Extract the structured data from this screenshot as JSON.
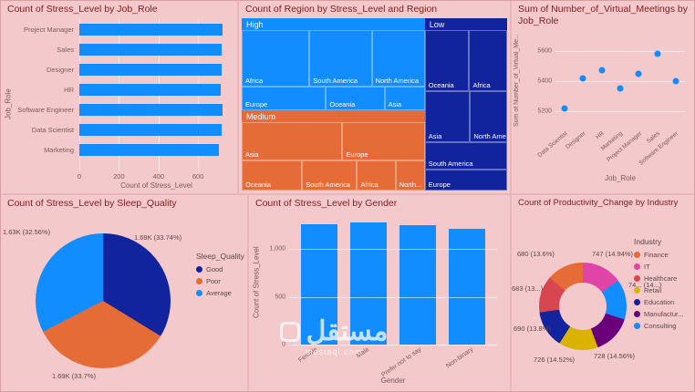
{
  "theme": {
    "background": "#E9B6B9",
    "panel_background": "#F4C9CB",
    "title_color": "#7E1D1D",
    "axis_text_color": "#7A5B5B",
    "primary_blue": "#118DFF",
    "dark_blue": "#12239E",
    "orange": "#E66C37",
    "pink": "#E044A7",
    "purple": "#6B007B",
    "yellow": "#D9B300",
    "red": "#D64550"
  },
  "watermark": {
    "brand": "مستقل",
    "domain": "mostaql.com"
  },
  "chart_data": [
    {
      "id": "job_role_bar",
      "type": "bar",
      "orientation": "horizontal",
      "title": "Count of Stress_Level by Job_Role",
      "xlabel": "Count of Stress_Level",
      "ylabel": "Job_Role",
      "categories": [
        "Project Manager",
        "Sales",
        "Designer",
        "HR",
        "Software Engineer",
        "Data Scientist",
        "Marketing"
      ],
      "values": [
        724,
        721,
        718,
        714,
        722,
        719,
        705
      ],
      "x_ticks": [
        0,
        200,
        400,
        600
      ],
      "x_max": 770,
      "bar_color": "#118DFF",
      "grid": true
    },
    {
      "id": "region_treemap",
      "type": "treemap",
      "title": "Count of Region by Stress_Level and Region",
      "groups": [
        {
          "label": "High",
          "color": "#118DFF",
          "x": 0,
          "y": 0,
          "w": 69,
          "h": 53.5,
          "cells": [
            {
              "label": "Africa",
              "x": 0,
              "y": 0,
              "w": 37,
              "h": 70
            },
            {
              "label": "South America",
              "x": 37,
              "y": 0,
              "w": 34,
              "h": 70
            },
            {
              "label": "North America",
              "x": 71,
              "y": 0,
              "w": 29,
              "h": 70
            },
            {
              "label": "Europe",
              "x": 0,
              "y": 70,
              "w": 46,
              "h": 30
            },
            {
              "label": "Oceania",
              "x": 46,
              "y": 70,
              "w": 32,
              "h": 30
            },
            {
              "label": "Asia",
              "x": 78,
              "y": 70,
              "w": 22,
              "h": 30
            }
          ]
        },
        {
          "label": "Medium",
          "color": "#E66C37",
          "x": 0,
          "y": 53.5,
          "w": 69,
          "h": 46.5,
          "cells": [
            {
              "label": "Asia",
              "x": 0,
              "y": 0,
              "w": 55,
              "h": 56
            },
            {
              "label": "Europe",
              "x": 55,
              "y": 0,
              "w": 45,
              "h": 56
            },
            {
              "label": "Oceania",
              "x": 0,
              "y": 56,
              "w": 33,
              "h": 44
            },
            {
              "label": "South America",
              "x": 33,
              "y": 56,
              "w": 30,
              "h": 44
            },
            {
              "label": "Africa",
              "x": 63,
              "y": 56,
              "w": 21,
              "h": 44
            },
            {
              "label": "North...",
              "x": 84,
              "y": 56,
              "w": 16,
              "h": 44
            }
          ]
        },
        {
          "label": "Low",
          "color": "#12239E",
          "x": 69,
          "y": 0,
          "w": 31,
          "h": 100,
          "cells": [
            {
              "label": "Oceania",
              "x": 0,
              "y": 0,
              "w": 54,
              "h": 38
            },
            {
              "label": "Africa",
              "x": 54,
              "y": 0,
              "w": 46,
              "h": 38
            },
            {
              "label": "Asia",
              "x": 0,
              "y": 38,
              "w": 55,
              "h": 32
            },
            {
              "label": "North Ame...",
              "x": 55,
              "y": 38,
              "w": 45,
              "h": 32
            },
            {
              "label": "South America",
              "x": 0,
              "y": 70,
              "w": 100,
              "h": 17
            },
            {
              "label": "Europe",
              "x": 0,
              "y": 87,
              "w": 100,
              "h": 13
            }
          ]
        }
      ]
    },
    {
      "id": "virtual_meetings_scatter",
      "type": "scatter",
      "title": "Sum of Number_of_Virtual_Meetings by Job_Role",
      "xlabel": "Job_Role",
      "ylabel": "Sum of Number_of_Virtual_Me...",
      "categories": [
        "Data Scientist",
        "Designer",
        "HR",
        "Marketing",
        "Project Manager",
        "Sales",
        "Software Engineer"
      ],
      "values": [
        5220,
        5420,
        5470,
        5350,
        5450,
        5580,
        5400
      ],
      "y_ticks": [
        5200,
        5400,
        5600
      ],
      "y_min": 5100,
      "y_max": 5700,
      "dot_color": "#118DFF",
      "grid": true
    },
    {
      "id": "sleep_quality_pie",
      "type": "pie",
      "title": "Count of Stress_Level by Sleep_Quality",
      "legend_title": "Sleep_Quality",
      "legend_items": [
        {
          "name": "Good",
          "color": "#12239E"
        },
        {
          "name": "Poor",
          "color": "#E66C37"
        },
        {
          "name": "Average",
          "color": "#118DFF"
        }
      ],
      "slices": [
        {
          "name": "Good",
          "value": 1690,
          "pct": 33.74,
          "display": "1.69K (33.74%)",
          "color": "#12239E",
          "label_pos": {
            "x": 146,
            "y": 42
          }
        },
        {
          "name": "Poor",
          "value": 1690,
          "pct": 33.7,
          "display": "1.69K (33.7%)",
          "color": "#E66C37",
          "label_pos": {
            "x": 56,
            "y": 194
          }
        },
        {
          "name": "Average",
          "value": 1630,
          "pct": 32.56,
          "display": "1.63K (32.56%)",
          "color": "#118DFF",
          "label_pos": {
            "x": 2,
            "y": 36
          }
        }
      ]
    },
    {
      "id": "gender_bar",
      "type": "bar",
      "orientation": "vertical",
      "title": "Count of Stress_Level by Gender",
      "xlabel": "Gender",
      "ylabel": "Count of Stress_Level",
      "categories": [
        "Female",
        "Male",
        "Prefer not to say",
        "Non-binary"
      ],
      "values": [
        1262,
        1278,
        1248,
        1212
      ],
      "y_ticks": [
        0,
        500,
        1000
      ],
      "y_tick_labels": [
        "0",
        "500",
        "1,000"
      ],
      "y_max": 1300,
      "bar_color": "#118DFF",
      "grid": true
    },
    {
      "id": "industry_donut",
      "type": "pie",
      "subtype": "donut",
      "title": "Count of Productivity_Change by Industry",
      "legend_title": "Industry",
      "legend_items": [
        {
          "name": "Finance",
          "color": "#E66C37"
        },
        {
          "name": "IT",
          "color": "#E044A7"
        },
        {
          "name": "Healthcare",
          "color": "#D64550"
        },
        {
          "name": "Retail",
          "color": "#D9B300"
        },
        {
          "name": "Education",
          "color": "#12239E"
        },
        {
          "name": "Manufactur...",
          "color": "#6B007B"
        },
        {
          "name": "Consulting",
          "color": "#118DFF"
        }
      ],
      "slices": [
        {
          "name": "IT",
          "value": 747,
          "pct": 14.94,
          "display": "747 (14.94%)",
          "color": "#E044A7",
          "label_pos": {
            "x": 88,
            "y": 60
          }
        },
        {
          "name": "Consulting",
          "value": 746,
          "pct": 14.92,
          "display": "74... (14...)",
          "color": "#118DFF",
          "label_pos": {
            "x": 128,
            "y": 94
          }
        },
        {
          "name": "Manufacturing",
          "value": 728,
          "pct": 14.56,
          "display": "728 (14.56%)",
          "color": "#6B007B",
          "label_pos": {
            "x": 90,
            "y": 172
          }
        },
        {
          "name": "Retail",
          "value": 726,
          "pct": 14.52,
          "display": "726 (14.52%)",
          "color": "#D9B300",
          "label_pos": {
            "x": 24,
            "y": 176
          }
        },
        {
          "name": "Education",
          "value": 690,
          "pct": 13.8,
          "display": "690 (13.8%)",
          "color": "#12239E",
          "label_pos": {
            "x": 2,
            "y": 142
          }
        },
        {
          "name": "Healthcare",
          "value": 683,
          "pct": 13.66,
          "display": "683 (13...)",
          "color": "#D64550",
          "label_pos": {
            "x": 0,
            "y": 98
          }
        },
        {
          "name": "Finance",
          "value": 680,
          "pct": 13.6,
          "display": "680 (13.6%)",
          "color": "#E66C37",
          "label_pos": {
            "x": 6,
            "y": 60
          }
        }
      ]
    }
  ]
}
